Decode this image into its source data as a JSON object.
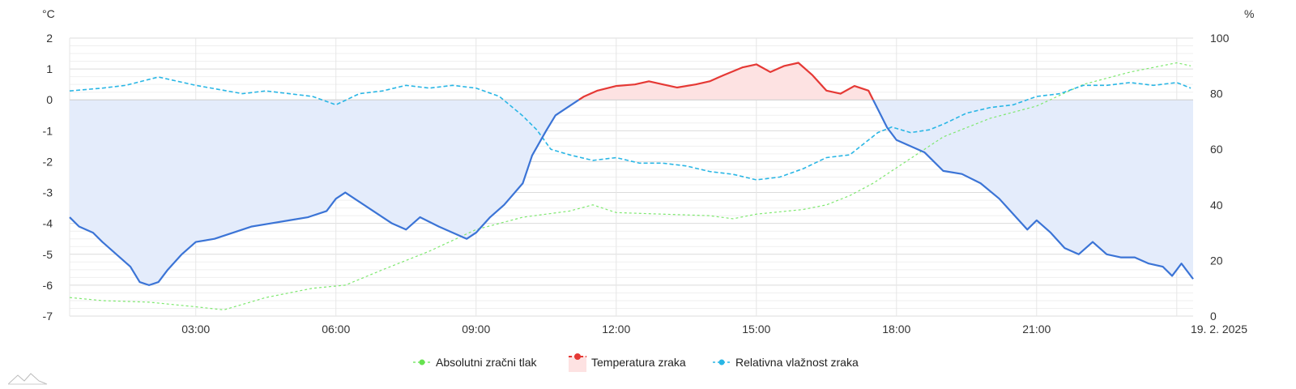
{
  "chart_data": {
    "type": "line",
    "x_axis": {
      "tick_labels": [
        "03:00",
        "06:00",
        "09:00",
        "12:00",
        "15:00",
        "18:00",
        "21:00",
        "19. 2. 2025"
      ],
      "tick_hours": [
        3,
        6,
        9,
        12,
        15,
        18,
        21,
        24
      ],
      "range_hours": [
        0.3,
        24.35
      ]
    },
    "y_left": {
      "unit": "°C",
      "range": [
        -7,
        2
      ],
      "ticks": [
        2,
        1,
        0,
        -1,
        -2,
        -3,
        -4,
        -5,
        -6,
        -7
      ]
    },
    "y_right": {
      "unit": "%",
      "range": [
        0,
        100
      ],
      "ticks": [
        100,
        80,
        60,
        40,
        20,
        0
      ]
    },
    "grid": true,
    "legend_position": "bottom-center",
    "series": [
      {
        "name": "Absolutni zračni tlak",
        "color": "#7ee86f",
        "style": "dashed-thin",
        "axis": "pressure (no visible scale)",
        "points": [
          [
            0.3,
            -6.4
          ],
          [
            1,
            -6.5
          ],
          [
            2,
            -6.55
          ],
          [
            3,
            -6.7
          ],
          [
            3.6,
            -6.8
          ],
          [
            4.5,
            -6.4
          ],
          [
            5.5,
            -6.1
          ],
          [
            6.2,
            -6.0
          ],
          [
            7,
            -5.5
          ],
          [
            8,
            -4.9
          ],
          [
            9,
            -4.2
          ],
          [
            10,
            -3.8
          ],
          [
            11,
            -3.6
          ],
          [
            11.5,
            -3.4
          ],
          [
            12,
            -3.65
          ],
          [
            13,
            -3.7
          ],
          [
            14,
            -3.75
          ],
          [
            14.5,
            -3.85
          ],
          [
            15,
            -3.7
          ],
          [
            16,
            -3.55
          ],
          [
            16.5,
            -3.4
          ],
          [
            17,
            -3.1
          ],
          [
            17.5,
            -2.7
          ],
          [
            18,
            -2.2
          ],
          [
            19,
            -1.2
          ],
          [
            20,
            -0.6
          ],
          [
            21,
            -0.2
          ],
          [
            22,
            0.5
          ],
          [
            23,
            0.9
          ],
          [
            24,
            1.2
          ],
          [
            24.3,
            1.1
          ]
        ]
      },
      {
        "name": "Temperatura zraka",
        "color_above_zero": "#e53935",
        "color_below_zero": "#3b74d6",
        "fill_above_zero": "#fde2e2",
        "fill_below_zero": "#e4ecfb",
        "axis": "left",
        "points": [
          [
            0.3,
            -3.8
          ],
          [
            0.5,
            -4.1
          ],
          [
            0.8,
            -4.3
          ],
          [
            1.0,
            -4.6
          ],
          [
            1.3,
            -5.0
          ],
          [
            1.6,
            -5.4
          ],
          [
            1.8,
            -5.9
          ],
          [
            2.0,
            -6.0
          ],
          [
            2.2,
            -5.9
          ],
          [
            2.4,
            -5.5
          ],
          [
            2.7,
            -5.0
          ],
          [
            3.0,
            -4.6
          ],
          [
            3.4,
            -4.5
          ],
          [
            3.8,
            -4.3
          ],
          [
            4.2,
            -4.1
          ],
          [
            4.6,
            -4.0
          ],
          [
            5.0,
            -3.9
          ],
          [
            5.4,
            -3.8
          ],
          [
            5.8,
            -3.6
          ],
          [
            6.0,
            -3.2
          ],
          [
            6.2,
            -3.0
          ],
          [
            6.4,
            -3.2
          ],
          [
            6.8,
            -3.6
          ],
          [
            7.2,
            -4.0
          ],
          [
            7.5,
            -4.2
          ],
          [
            7.8,
            -3.8
          ],
          [
            8.2,
            -4.1
          ],
          [
            8.5,
            -4.3
          ],
          [
            8.8,
            -4.5
          ],
          [
            9.0,
            -4.3
          ],
          [
            9.3,
            -3.8
          ],
          [
            9.6,
            -3.4
          ],
          [
            10.0,
            -2.7
          ],
          [
            10.2,
            -1.8
          ],
          [
            10.5,
            -1.0
          ],
          [
            10.7,
            -0.5
          ],
          [
            11.0,
            -0.2
          ],
          [
            11.3,
            0.1
          ],
          [
            11.6,
            0.3
          ],
          [
            12.0,
            0.45
          ],
          [
            12.4,
            0.5
          ],
          [
            12.7,
            0.6
          ],
          [
            13.0,
            0.5
          ],
          [
            13.3,
            0.4
          ],
          [
            13.7,
            0.5
          ],
          [
            14.0,
            0.6
          ],
          [
            14.3,
            0.8
          ],
          [
            14.7,
            1.05
          ],
          [
            15.0,
            1.15
          ],
          [
            15.3,
            0.9
          ],
          [
            15.6,
            1.1
          ],
          [
            15.9,
            1.2
          ],
          [
            16.2,
            0.8
          ],
          [
            16.5,
            0.3
          ],
          [
            16.8,
            0.2
          ],
          [
            17.1,
            0.45
          ],
          [
            17.4,
            0.3
          ],
          [
            17.6,
            -0.3
          ],
          [
            17.8,
            -0.9
          ],
          [
            18.0,
            -1.3
          ],
          [
            18.3,
            -1.5
          ],
          [
            18.6,
            -1.7
          ],
          [
            19.0,
            -2.3
          ],
          [
            19.4,
            -2.4
          ],
          [
            19.8,
            -2.7
          ],
          [
            20.2,
            -3.2
          ],
          [
            20.5,
            -3.7
          ],
          [
            20.8,
            -4.2
          ],
          [
            21.0,
            -3.9
          ],
          [
            21.3,
            -4.3
          ],
          [
            21.6,
            -4.8
          ],
          [
            21.9,
            -5.0
          ],
          [
            22.2,
            -4.6
          ],
          [
            22.5,
            -5.0
          ],
          [
            22.8,
            -5.1
          ],
          [
            23.1,
            -5.1
          ],
          [
            23.4,
            -5.3
          ],
          [
            23.7,
            -5.4
          ],
          [
            23.9,
            -5.7
          ],
          [
            24.1,
            -5.3
          ],
          [
            24.35,
            -5.8
          ]
        ]
      },
      {
        "name": "Relativna vlažnost zraka",
        "color": "#29b6e5",
        "style": "dashed",
        "axis": "right",
        "points": [
          [
            0.3,
            81
          ],
          [
            1,
            82
          ],
          [
            1.5,
            83
          ],
          [
            2.2,
            86
          ],
          [
            3,
            83
          ],
          [
            4,
            80
          ],
          [
            4.5,
            81
          ],
          [
            5,
            80
          ],
          [
            5.5,
            79
          ],
          [
            6,
            76
          ],
          [
            6.5,
            80
          ],
          [
            7,
            81
          ],
          [
            7.5,
            83
          ],
          [
            8,
            82
          ],
          [
            8.5,
            83
          ],
          [
            9,
            82
          ],
          [
            9.5,
            79
          ],
          [
            10,
            72
          ],
          [
            10.3,
            67
          ],
          [
            10.6,
            60
          ],
          [
            11,
            58
          ],
          [
            11.5,
            56
          ],
          [
            12,
            57
          ],
          [
            12.5,
            55
          ],
          [
            13,
            55
          ],
          [
            13.5,
            54
          ],
          [
            14,
            52
          ],
          [
            14.5,
            51
          ],
          [
            15,
            49
          ],
          [
            15.5,
            50
          ],
          [
            16,
            53
          ],
          [
            16.5,
            57
          ],
          [
            17,
            58
          ],
          [
            17.3,
            62
          ],
          [
            17.6,
            66
          ],
          [
            17.9,
            68
          ],
          [
            18.3,
            66
          ],
          [
            18.7,
            67
          ],
          [
            19,
            69
          ],
          [
            19.5,
            73
          ],
          [
            20,
            75
          ],
          [
            20.5,
            76
          ],
          [
            21,
            79
          ],
          [
            21.5,
            80
          ],
          [
            22,
            83
          ],
          [
            22.5,
            83
          ],
          [
            23,
            84
          ],
          [
            23.5,
            83
          ],
          [
            24,
            84
          ],
          [
            24.3,
            82
          ]
        ]
      }
    ]
  }
}
